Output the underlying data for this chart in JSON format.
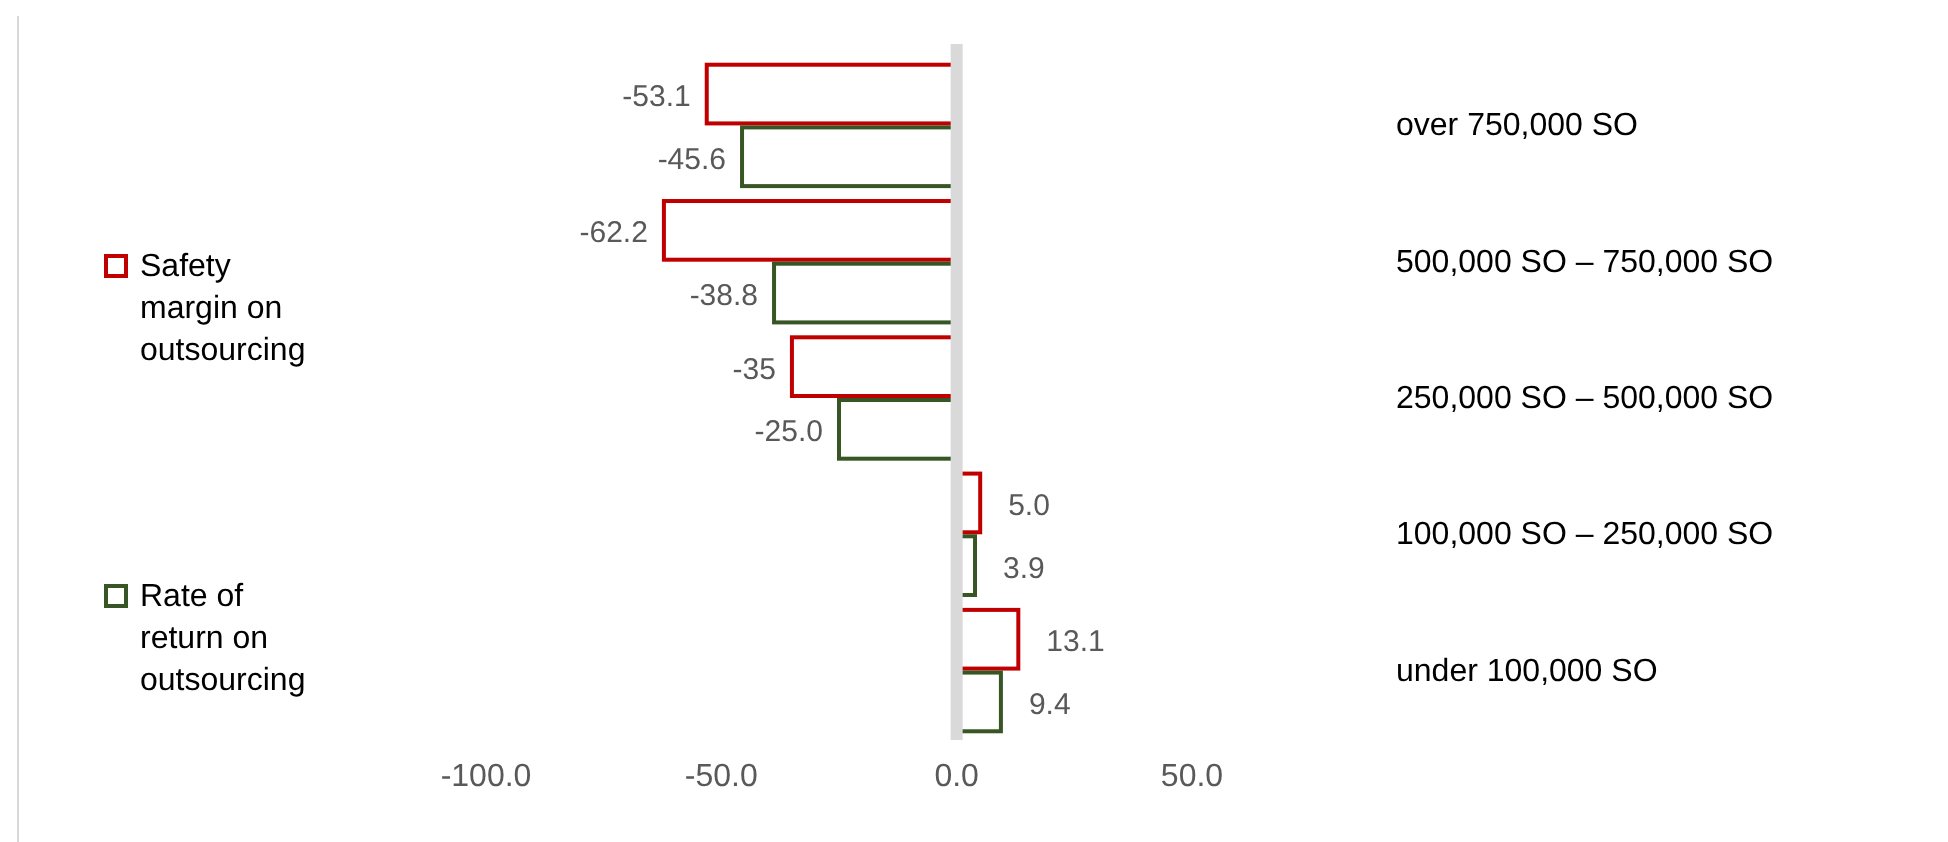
{
  "chart_data": {
    "type": "bar",
    "orientation": "horizontal",
    "categories": [
      "over 750,000 SO",
      "500,000 SO – 750,000 SO",
      "250,000 SO – 500,000 SO",
      "100,000 SO – 250,000 SO",
      "under 100,000 SO"
    ],
    "series": [
      {
        "name": "Safety margin on outsourcing",
        "color": "#c00000",
        "values": [
          -53.1,
          -62.2,
          -35,
          5.0,
          13.1
        ],
        "value_labels": [
          "-53.1",
          "-62.2",
          "-35",
          "5.0",
          "13.1"
        ]
      },
      {
        "name": "Rate of return on outsourcing",
        "color": "#375623",
        "values": [
          -45.6,
          -38.8,
          -25.0,
          3.9,
          9.4
        ],
        "value_labels": [
          "-45.6",
          "-38.8",
          "-25.0",
          "3.9",
          "9.4"
        ]
      }
    ],
    "xlim": [
      -100,
      50
    ],
    "xticks": [
      {
        "value": -100,
        "label": "-100.0"
      },
      {
        "value": -50,
        "label": "-50.0"
      },
      {
        "value": 0,
        "label": "0.0"
      },
      {
        "value": 50,
        "label": "50.0"
      }
    ],
    "legend": "left"
  }
}
